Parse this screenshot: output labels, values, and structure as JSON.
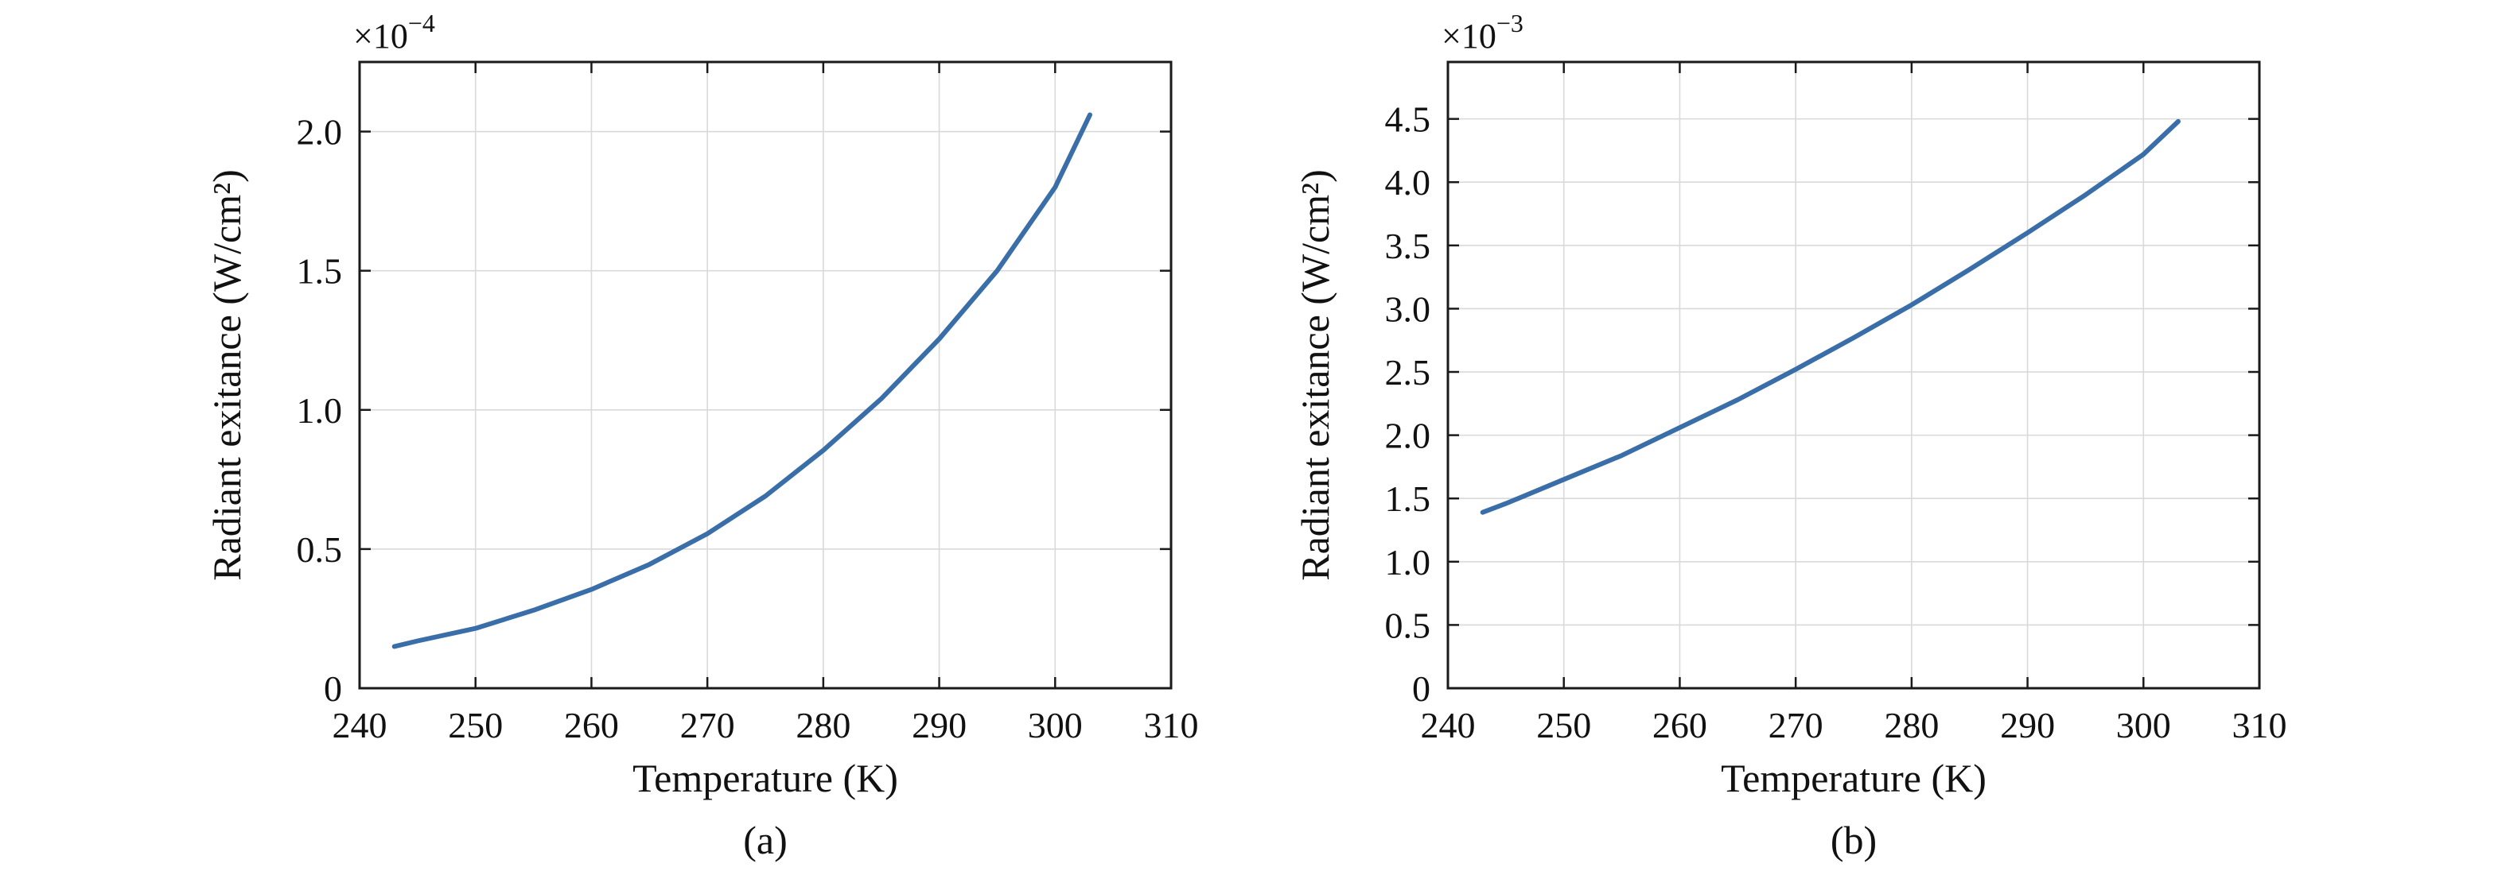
{
  "colors": {
    "line": "#3a6ea8",
    "axis": "#1a1a1a",
    "grid": "#d9d9d9"
  },
  "chart_data": [
    {
      "type": "line",
      "panel_label": "(a)",
      "xlabel": "Temperature (K)",
      "ylabel": "Radiant exitance (W/cm²)",
      "multiplier": {
        "base": "×10",
        "exponent": "−4"
      },
      "xlim": [
        240,
        310
      ],
      "ylim": [
        0,
        2.25
      ],
      "xticks": [
        240,
        250,
        260,
        270,
        280,
        290,
        300,
        310
      ],
      "xtick_labels": [
        "240",
        "250",
        "260",
        "270",
        "280",
        "290",
        "300",
        "310"
      ],
      "yticks": [
        0,
        0.5,
        1.0,
        1.5,
        2.0
      ],
      "ytick_labels": [
        "0",
        "0.5",
        "1.0",
        "1.5",
        "2.0"
      ],
      "grid": true,
      "series": [
        {
          "x": [
            243,
            245,
            250,
            255,
            260,
            265,
            270,
            275,
            280,
            285,
            290,
            295,
            300,
            303
          ],
          "y": [
            0.15,
            0.17,
            0.215,
            0.28,
            0.355,
            0.445,
            0.555,
            0.69,
            0.855,
            1.04,
            1.255,
            1.5,
            1.8,
            2.06
          ]
        }
      ]
    },
    {
      "type": "line",
      "panel_label": "(b)",
      "xlabel": "Temperature (K)",
      "ylabel": "Radiant exitance (W/cm²)",
      "multiplier": {
        "base": "×10",
        "exponent": "−3"
      },
      "xlim": [
        240,
        310
      ],
      "ylim": [
        0,
        4.95
      ],
      "xticks": [
        240,
        250,
        260,
        270,
        280,
        290,
        300,
        310
      ],
      "xtick_labels": [
        "240",
        "250",
        "260",
        "270",
        "280",
        "290",
        "300",
        "310"
      ],
      "yticks": [
        0,
        0.5,
        1.0,
        1.5,
        2.0,
        2.5,
        3.0,
        3.5,
        4.0,
        4.5
      ],
      "ytick_labels": [
        "0",
        "0.5",
        "1.0",
        "1.5",
        "2.0",
        "2.5",
        "3.0",
        "3.5",
        "4.0",
        "4.5"
      ],
      "grid": true,
      "series": [
        {
          "x": [
            243,
            245,
            250,
            255,
            260,
            265,
            270,
            275,
            280,
            285,
            290,
            295,
            300,
            303
          ],
          "y": [
            1.39,
            1.46,
            1.65,
            1.84,
            2.06,
            2.28,
            2.52,
            2.77,
            3.03,
            3.31,
            3.6,
            3.9,
            4.22,
            4.48
          ]
        }
      ]
    }
  ]
}
